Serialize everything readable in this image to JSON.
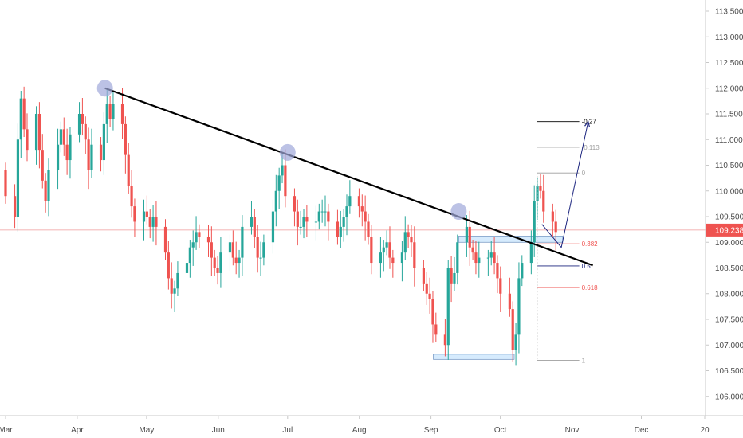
{
  "chart_data": {
    "type": "candlestick",
    "title": "",
    "xlabel": "",
    "ylabel": "",
    "ylim": [
      105.75,
      113.75
    ],
    "y_ticks": [
      "113.500",
      "113.000",
      "112.500",
      "112.000",
      "111.500",
      "111.000",
      "110.500",
      "110.000",
      "109.500",
      "109.000",
      "108.500",
      "108.000",
      "107.500",
      "107.000",
      "106.500",
      "106.000"
    ],
    "x_ticks": [
      "Mar",
      "Apr",
      "May",
      "Jun",
      "Jul",
      "Aug",
      "Sep",
      "Oct",
      "Nov",
      "Dec",
      "20"
    ],
    "last_price": "109.238",
    "grid": false,
    "colors": {
      "up": "#26a69a",
      "down": "#ef5350",
      "trendline": "#000000",
      "target_arrow": "#1a237e",
      "marker": "#9fa8da",
      "zone": "#bbdefb",
      "price_line": "#ef9a9a",
      "price_tag": "#ef5350"
    },
    "candles_close": [
      109.9,
      109.5,
      111.0,
      111.8,
      111.2,
      110.8,
      111.5,
      110.8,
      110.2,
      109.8,
      110.4,
      110.9,
      111.2,
      110.9,
      110.6,
      111.1,
      111.5,
      111.3,
      111.0,
      110.4,
      110.9,
      110.6,
      111.3,
      111.7,
      111.4,
      111.7,
      111.3,
      110.7,
      110.1,
      109.7,
      109.4,
      109.6,
      109.5,
      109.3,
      109.5,
      109.3,
      108.8,
      108.3,
      108.0,
      108.1,
      108.4,
      108.6,
      108.9,
      109.0,
      109.2,
      109.1,
      109.0,
      108.7,
      108.5,
      108.4,
      108.8,
      109.0,
      108.7,
      108.6,
      108.7,
      109.3,
      109.5,
      109.1,
      108.7,
      108.7,
      109.0,
      109.6,
      110.0,
      110.3,
      110.5,
      109.9,
      109.6,
      109.3,
      109.3,
      109.5,
      109.4,
      109.4,
      109.6,
      109.6,
      109.6,
      109.4,
      109.1,
      109.3,
      109.5,
      109.7,
      109.9,
      109.7,
      109.6,
      109.4,
      109.1,
      108.6,
      108.8,
      108.9,
      109.0,
      108.7,
      108.6,
      108.8,
      109.2,
      109.1,
      109.0,
      108.5,
      108.2,
      108.0,
      107.9,
      107.4,
      107.2,
      107.0,
      108.5,
      108.2,
      108.4,
      109.0,
      109.3,
      108.9,
      108.8,
      108.6,
      108.7,
      108.7,
      108.8,
      108.6,
      108.3,
      108.0,
      107.7,
      106.9,
      107.2,
      108.3,
      108.6,
      109.0,
      109.8,
      110.1,
      110.0,
      109.6,
      109.4,
      109.2
    ],
    "trendline": {
      "from": {
        "x": "2019-04-13",
        "y": 112.0
      },
      "to": {
        "x": "2019-11-10",
        "y": 108.55
      }
    },
    "touch_markers": [
      {
        "x": "2019-04-13",
        "y": 112.0
      },
      {
        "x": "2019-07-01",
        "y": 110.75
      },
      {
        "x": "2019-09-13",
        "y": 109.6
      }
    ],
    "support_zones": [
      {
        "from": "2019-09-13",
        "to": "2019-10-28",
        "low": 109.0,
        "high": 109.12
      },
      {
        "from": "2019-09-02",
        "to": "2019-10-07",
        "low": 106.72,
        "high": 106.82
      }
    ],
    "fibonacci": {
      "from": "2019-10-17",
      "to": "2019-10-31",
      "levels": [
        {
          "label": "-0.27",
          "value": 111.35,
          "color": "#000000"
        },
        {
          "label": "-0.113",
          "value": 110.85,
          "color": "#9e9e9e"
        },
        {
          "label": "0",
          "value": 110.35,
          "color": "#9e9e9e"
        },
        {
          "label": "0.382",
          "value": 108.97,
          "color": "#ef5350"
        },
        {
          "label": "0.5",
          "value": 108.54,
          "color": "#1a237e"
        },
        {
          "label": "0.618",
          "value": 108.12,
          "color": "#ef5350"
        },
        {
          "label": "1",
          "value": 106.7,
          "color": "#9e9e9e"
        }
      ]
    },
    "projection": {
      "start": {
        "x": "2019-10-26",
        "y": 108.9
      },
      "end": {
        "x": "2019-11-08",
        "y": 111.35
      }
    }
  }
}
